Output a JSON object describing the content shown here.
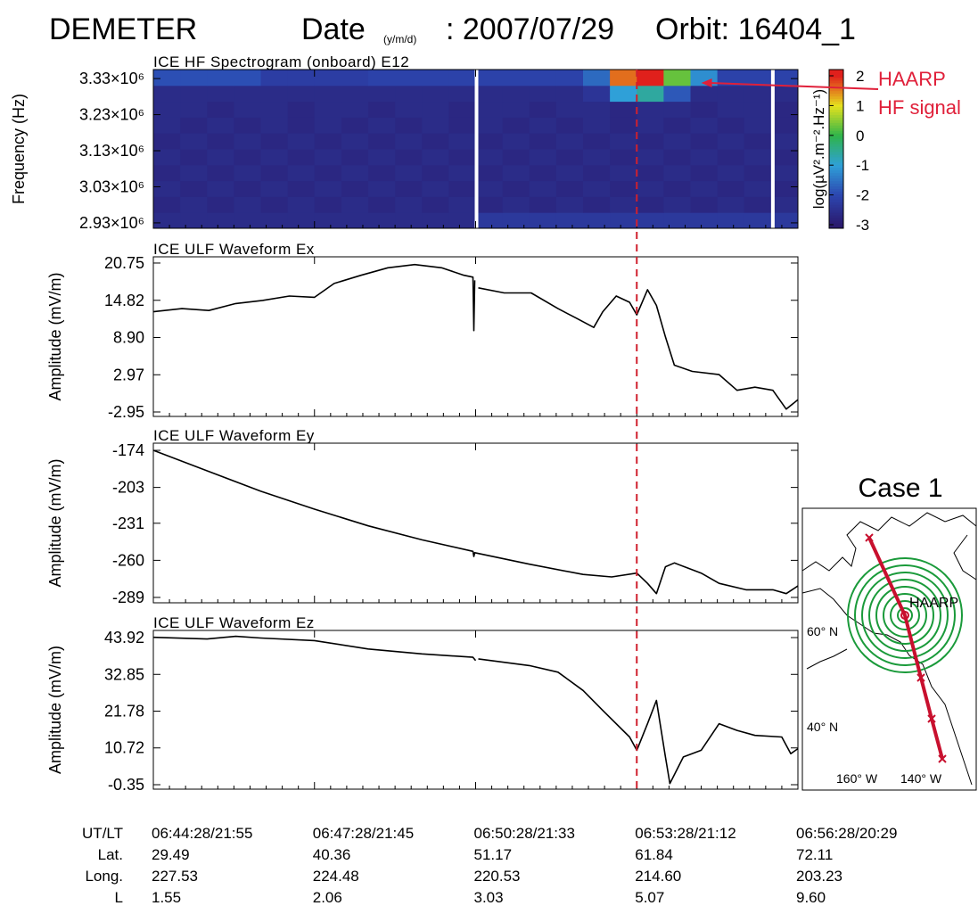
{
  "header": {
    "instrument": "DEMETER",
    "date_label": "Date",
    "date_unit": "(y/m/d)",
    "date": ": 2007/07/29",
    "orbit": "Orbit: 16404_1"
  },
  "event_time": "06:53:28",
  "chart_data": [
    {
      "type": "heatmap",
      "title": "ICE HF Spectrogram (onboard) E12",
      "y_label": "Frequency (Hz)",
      "xlim": [
        "06:44:28",
        "06:56:28"
      ],
      "xbins": [
        "06:44:28",
        "06:44:58",
        "06:45:28",
        "06:45:58",
        "06:46:28",
        "06:46:58",
        "06:47:28",
        "06:47:58",
        "06:48:28",
        "06:48:58",
        "06:49:28",
        "06:49:58",
        "06:50:28",
        "06:50:58",
        "06:51:28",
        "06:51:58",
        "06:52:28",
        "06:52:58",
        "06:53:28",
        "06:53:58",
        "06:54:28",
        "06:54:58",
        "06:55:28",
        "06:55:58",
        "06:56:28"
      ],
      "ybins": [
        2915000,
        2959000,
        3003000,
        3047000,
        3091000,
        3135000,
        3179000,
        3223000,
        3267000,
        3311000,
        3355000
      ],
      "ylim": [
        2915000,
        3355000
      ],
      "yticks": [
        {
          "value": 2930000,
          "label": "2.93×10⁶"
        },
        {
          "value": 3030000,
          "label": "3.03×10⁶"
        },
        {
          "value": 3130000,
          "label": "3.13×10⁶"
        },
        {
          "value": 3230000,
          "label": "3.23×10⁶"
        },
        {
          "value": 3330000,
          "label": "3.33×10⁶"
        }
      ],
      "z": [
        [
          -2.6,
          -2.6,
          -2.6,
          -2.6,
          -2.6,
          -2.6,
          -2.6,
          -2.6,
          -2.6,
          -2.6,
          -2.6,
          -2.6,
          -2.3,
          -2.3,
          -2.3,
          -2.3,
          -2.3,
          -2.3,
          -2.3,
          -2.3,
          -2.3,
          -2.3,
          -2.3,
          -2.3
        ],
        [
          -2.7,
          -2.6,
          -2.7,
          -2.6,
          -2.7,
          -2.6,
          -2.7,
          -2.6,
          -2.7,
          -2.6,
          -2.7,
          -2.6,
          -2.7,
          -2.6,
          -2.7,
          -2.6,
          -2.7,
          -2.6,
          -2.7,
          -2.6,
          -2.7,
          -2.6,
          -2.7,
          -2.6
        ],
        [
          -2.6,
          -2.7,
          -2.6,
          -2.7,
          -2.6,
          -2.7,
          -2.6,
          -2.7,
          -2.6,
          -2.7,
          -2.6,
          -2.7,
          -2.6,
          -2.7,
          -2.6,
          -2.7,
          -2.6,
          -2.7,
          -2.6,
          -2.7,
          -2.6,
          -2.7,
          -2.6,
          -2.7
        ],
        [
          -2.7,
          -2.6,
          -2.7,
          -2.6,
          -2.7,
          -2.6,
          -2.7,
          -2.6,
          -2.7,
          -2.6,
          -2.7,
          -2.6,
          -2.7,
          -2.6,
          -2.7,
          -2.6,
          -2.7,
          -2.6,
          -2.7,
          -2.6,
          -2.7,
          -2.6,
          -2.7,
          -2.6
        ],
        [
          -2.6,
          -2.7,
          -2.6,
          -2.7,
          -2.6,
          -2.7,
          -2.6,
          -2.7,
          -2.6,
          -2.7,
          -2.6,
          -2.7,
          -2.6,
          -2.7,
          -2.6,
          -2.7,
          -2.6,
          -2.7,
          -2.6,
          -2.7,
          -2.6,
          -2.7,
          -2.6,
          -2.7
        ],
        [
          -2.7,
          -2.6,
          -2.7,
          -2.6,
          -2.7,
          -2.6,
          -2.7,
          -2.6,
          -2.7,
          -2.6,
          -2.7,
          -2.6,
          -2.7,
          -2.6,
          -2.7,
          -2.6,
          -2.7,
          -2.6,
          -2.7,
          -2.6,
          -2.7,
          -2.6,
          -2.7,
          -2.6
        ],
        [
          -2.6,
          -2.7,
          -2.6,
          -2.7,
          -2.6,
          -2.7,
          -2.6,
          -2.7,
          -2.6,
          -2.7,
          -2.6,
          -2.7,
          -2.6,
          -2.7,
          -2.6,
          -2.7,
          -2.6,
          -2.7,
          -2.6,
          -2.7,
          -2.6,
          -2.7,
          -2.6,
          -2.7
        ],
        [
          -2.6,
          -2.6,
          -2.7,
          -2.6,
          -2.6,
          -2.7,
          -2.6,
          -2.6,
          -2.7,
          -2.6,
          -2.6,
          -2.7,
          -2.6,
          -2.6,
          -2.7,
          -2.6,
          -2.6,
          -2.7,
          -2.6,
          -2.6,
          -2.7,
          -2.6,
          -2.6,
          -2.7
        ],
        [
          -2.6,
          -2.6,
          -2.6,
          -2.6,
          -2.6,
          -2.6,
          -2.6,
          -2.6,
          -2.6,
          -2.6,
          -2.6,
          -2.6,
          -2.6,
          -2.6,
          -2.6,
          -2.6,
          -2.4,
          -1.0,
          -0.6,
          -1.8,
          -2.6,
          -2.6,
          -2.6,
          -2.6
        ],
        [
          -1.9,
          -1.9,
          -1.9,
          -1.9,
          -2.2,
          -2.2,
          -2.2,
          -2.2,
          -2.1,
          -2.1,
          -2.1,
          -2.1,
          -2.1,
          -2.1,
          -2.1,
          -2.1,
          -1.6,
          1.6,
          2.0,
          0.3,
          -1.2,
          -2.1,
          -2.1,
          -2.1
        ]
      ],
      "gaps": [
        "06:50:29",
        "06:56:00"
      ],
      "colorbar_label": "log(µV².m⁻².Hz⁻¹)",
      "clim": [
        -3.12,
        2.21
      ],
      "cticks": [
        -3,
        -2,
        -1,
        0,
        1,
        2
      ],
      "colormap": [
        "#2b1a6e",
        "#2c46b0",
        "#2fa0d8",
        "#2fb44a",
        "#e6e21e",
        "#e0201c"
      ],
      "annotation": [
        "HAARP",
        "HF signal"
      ],
      "annotation_color": "#e0203a",
      "annotation_target": "06:54:40"
    },
    {
      "type": "line",
      "title": "ICE ULF Waveform Ex",
      "y_label": "Amplitude (mV/m)",
      "color": "#000000",
      "xlim": [
        "06:44:28",
        "06:56:28"
      ],
      "ylim": [
        -3.66,
        21.74
      ],
      "yticks": [
        -2.95,
        2.97,
        {
          "value": 8.9,
          "label": "8.90"
        },
        14.82,
        20.75
      ],
      "x": [
        "06:44:28",
        "06:45:00",
        "06:45:30",
        "06:46:00",
        "06:46:30",
        "06:47:00",
        "06:47:28",
        "06:47:50",
        "06:48:20",
        "06:48:50",
        "06:49:20",
        "06:49:50",
        "06:50:15",
        "06:50:25",
        "06:50:26",
        "06:50:27",
        "06:50:29",
        "06:50:31",
        "06:51:00",
        "06:51:30",
        "06:52:00",
        "06:52:20",
        "06:52:40",
        "06:52:50",
        "06:53:05",
        "06:53:20",
        "06:53:28",
        "06:53:40",
        "06:53:50",
        "06:54:00",
        "06:54:10",
        "06:54:30",
        "06:55:00",
        "06:55:20",
        "06:55:40",
        "06:56:00",
        "06:56:15",
        "06:56:28"
      ],
      "values": [
        13.0,
        13.5,
        13.2,
        14.3,
        14.8,
        15.5,
        15.3,
        17.5,
        18.8,
        20.0,
        20.5,
        20.0,
        18.8,
        18.5,
        10.0,
        18.0,
        null,
        16.8,
        16.0,
        16.0,
        13.5,
        12.0,
        10.5,
        13.0,
        15.5,
        14.5,
        12.5,
        16.5,
        14.0,
        9.0,
        4.5,
        3.5,
        3.0,
        0.5,
        1.0,
        0.5,
        -2.5,
        -1.0
      ]
    },
    {
      "type": "line",
      "title": "ICE ULF Waveform Ey",
      "y_label": "Amplitude (mV/m)",
      "color": "#000000",
      "xlim": [
        "06:44:28",
        "06:56:28"
      ],
      "ylim": [
        -293.2,
        -168.4
      ],
      "yticks": [
        -289,
        -260,
        -231,
        -203,
        -174
      ],
      "x": [
        "06:44:28",
        "06:45:28",
        "06:46:28",
        "06:47:28",
        "06:48:28",
        "06:49:28",
        "06:50:25",
        "06:50:26",
        "06:50:27",
        "06:51:28",
        "06:52:28",
        "06:53:00",
        "06:53:28",
        "06:53:40",
        "06:53:50",
        "06:54:00",
        "06:54:10",
        "06:54:40",
        "06:55:00",
        "06:55:30",
        "06:56:00",
        "06:56:15",
        "06:56:28"
      ],
      "values": [
        -174,
        -190,
        -206,
        -220,
        -233,
        -244,
        -253,
        -257,
        -254,
        -263,
        -271,
        -273,
        -270,
        -278,
        -286,
        -265,
        -262,
        -270,
        -278,
        -283,
        -283,
        -286,
        -280
      ]
    },
    {
      "type": "line",
      "title": "ICE ULF Waveform Ez",
      "y_label": "Amplitude (mV/m)",
      "color": "#000000",
      "xlim": [
        "06:44:28",
        "06:56:28"
      ],
      "ylim": [
        -1.69,
        46.07
      ],
      "yticks": [
        -0.35,
        10.72,
        21.78,
        32.85,
        43.92
      ],
      "x": [
        "06:44:28",
        "06:45:28",
        "06:46:00",
        "06:46:28",
        "06:47:28",
        "06:48:28",
        "06:49:28",
        "06:50:25",
        "06:50:28",
        "06:50:29",
        "06:50:31",
        "06:51:28",
        "06:52:00",
        "06:52:28",
        "06:52:50",
        "06:53:20",
        "06:53:28",
        "06:53:40",
        "06:53:50",
        "06:54:00",
        "06:54:05",
        "06:54:20",
        "06:54:40",
        "06:55:00",
        "06:55:20",
        "06:55:40",
        "06:56:10",
        "06:56:20",
        "06:56:28"
      ],
      "values": [
        44.0,
        43.5,
        44.3,
        43.8,
        43.0,
        40.5,
        39.0,
        38.0,
        37.0,
        null,
        37.5,
        35.5,
        33.5,
        28.0,
        22.0,
        14.0,
        10.0,
        18.0,
        25.0,
        8.0,
        0.0,
        8.0,
        10.0,
        18.0,
        16.0,
        14.5,
        14.0,
        9.0,
        10.5
      ]
    }
  ],
  "orbit_table": {
    "labels": [
      "UT/LT",
      "Lat.",
      "Long.",
      "L"
    ],
    "columns": [
      [
        "06:44:28/21:55",
        "29.49",
        "227.53",
        "1.55"
      ],
      [
        "06:47:28/21:45",
        "40.36",
        "224.48",
        "2.06"
      ],
      [
        "06:50:28/21:33",
        "51.17",
        "220.53",
        "3.03"
      ],
      [
        "06:53:28/21:12",
        "61.84",
        "214.60",
        "5.07"
      ],
      [
        "06:56:28/20:29",
        "72.11",
        "203.23",
        "9.60"
      ]
    ],
    "times": [
      "06:44:28",
      "06:47:28",
      "06:50:28",
      "06:53:28",
      "06:56:28"
    ]
  },
  "map": {
    "title": "Case 1",
    "site": "HAARP",
    "lat_labels": [
      "60° N",
      "40° N"
    ],
    "lon_labels": [
      "160° W",
      "140° W"
    ]
  }
}
